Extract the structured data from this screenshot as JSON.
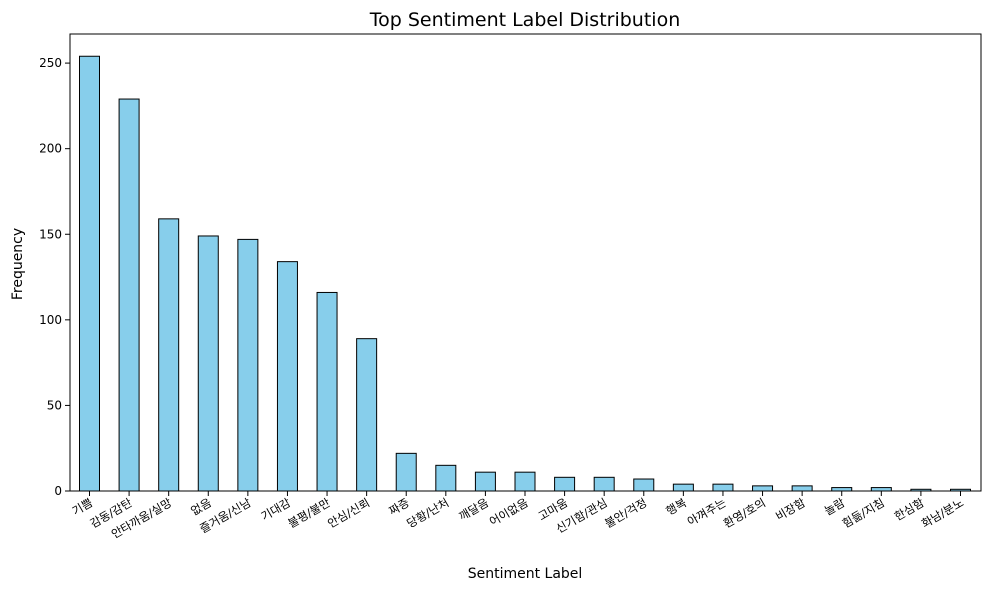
{
  "chart_data": {
    "type": "bar",
    "title": "Top Sentiment Label Distribution",
    "xlabel": "Sentiment Label",
    "ylabel": "Frequency",
    "ylim": [
      0,
      267
    ],
    "yticks": [
      0,
      50,
      100,
      150,
      200,
      250
    ],
    "bar_color": "#87CEEB",
    "edge_color": "#000000",
    "grid": false,
    "categories": [
      "기쁨",
      "감동/감탄",
      "안타까움/실망",
      "없음",
      "즐거움/신남",
      "기대감",
      "불평/불만",
      "안심/신뢰",
      "짜증",
      "당황/난처",
      "깨달음",
      "어이없음",
      "고마움",
      "신기함/관심",
      "불안/걱정",
      "행복",
      "아껴주는",
      "환영/호의",
      "비장함",
      "놀람",
      "힘듦/지침",
      "한심함",
      "화남/분노"
    ],
    "values": [
      254,
      229,
      159,
      149,
      147,
      134,
      116,
      89,
      22,
      15,
      11,
      11,
      8,
      8,
      7,
      4,
      4,
      3,
      3,
      2,
      2,
      1,
      1
    ]
  }
}
